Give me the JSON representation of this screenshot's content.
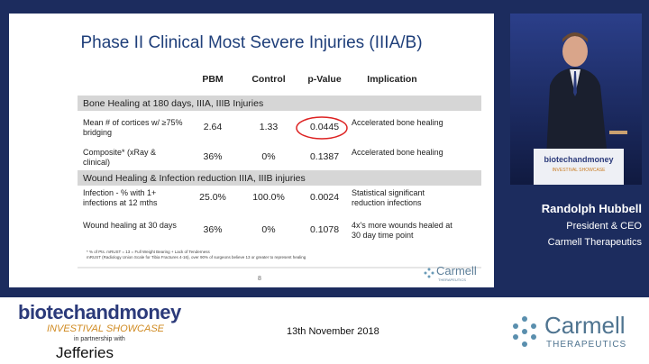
{
  "slide": {
    "title": "Phase II Clinical Most Severe Injuries (IIIA/B)",
    "table": {
      "headers": [
        "PBM",
        "Control",
        "p-Value",
        "Implication"
      ],
      "sections": [
        {
          "title": "Bone Healing at 180 days, IIIA, IIIB Injuries",
          "rows": [
            [
              "Mean # of cortices w/ ≥75% bridging",
              "2.64",
              "1.33",
              "0.0445",
              "Accelerated bone healing"
            ],
            [
              "Composite* (xRay & clinical)",
              "36%",
              "0%",
              "0.1387",
              "Accelerated bone healing"
            ]
          ]
        },
        {
          "title": "Wound Healing & Infection reduction IIIA, IIIB injuries",
          "rows": [
            [
              "Infection - % with 1+ infections at 12 mths",
              "25.0%",
              "100.0%",
              "0.0024",
              "Statistical significant reduction infections"
            ],
            [
              "Wound healing at 30 days",
              "36%",
              "0%",
              "0.1078",
              "4x's more wounds healed at 30 day time point"
            ]
          ]
        }
      ]
    },
    "footnotes": [
      "* % of Pts. mRUST = 13 = Full Weight Bearing + Lack of Tenderness",
      "mRUST (Radiology Union Scale for Tibia Fractures 4-16), over 90% of surgeons believe 13 or greater to represent healing"
    ],
    "logo": "Carmell",
    "logo_sub": "THERAPEUTICS",
    "page_number": "8"
  },
  "photo": {
    "podium_sign": [
      "biotechandmoney",
      "INVESTIVAL SHOWCASE"
    ]
  },
  "speaker": {
    "name": "Randolph Hubbell",
    "role": "President & CEO",
    "company": "Carmell Therapeutics"
  },
  "footer": {
    "event_logo": [
      "biotechandmoney",
      "INVESTIVAL SHOWCASE"
    ],
    "partnership": "in partnership with",
    "partner": "Jefferies",
    "date": "13th November 2018",
    "company_logo": "Carmell",
    "company_logo_sub": "THERAPEUTICS"
  }
}
